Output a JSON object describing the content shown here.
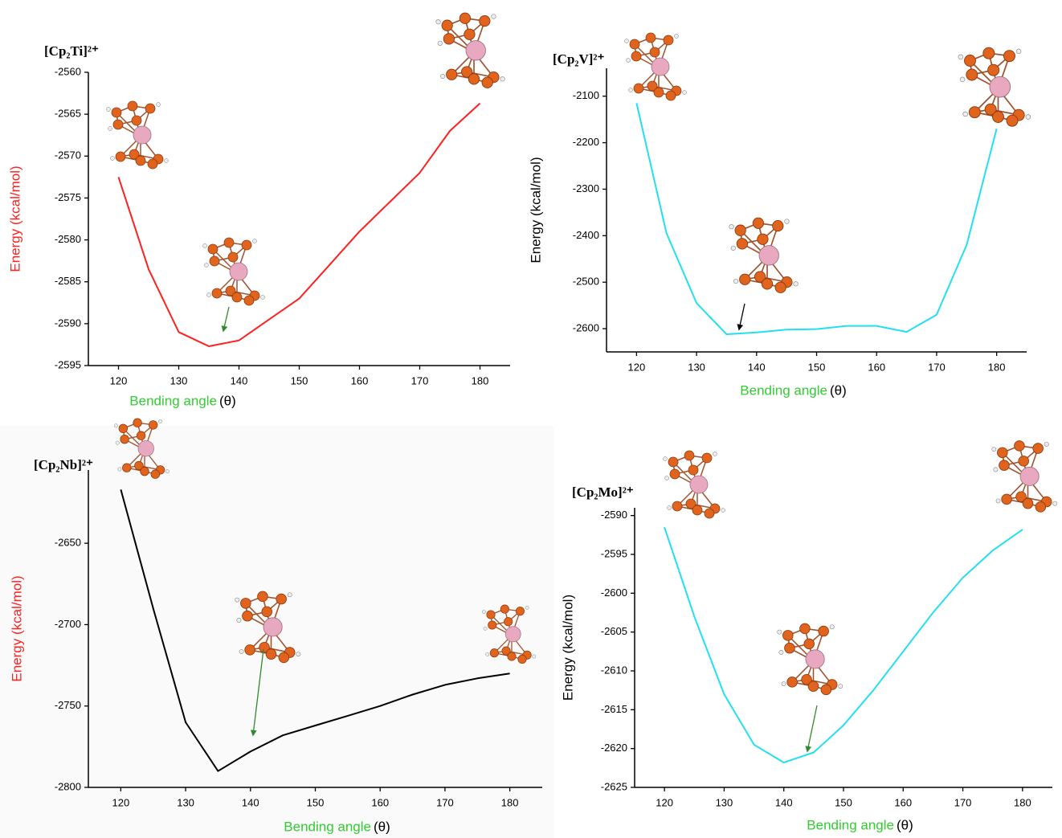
{
  "chart_data": [
    {
      "type": "line",
      "title": "[Cp₂Ti]²⁺",
      "x_label": "Bending angle",
      "x_label_unit": "(θ)",
      "x_label_color": "#33cc33",
      "y_label": "Energy (kcal/mol)",
      "y_label_color": "#ff2020",
      "x": [
        120,
        125,
        130,
        135,
        140,
        145,
        150,
        155,
        160,
        165,
        170,
        175,
        180
      ],
      "values": [
        -2572.5,
        -2583.5,
        -2591,
        -2592.7,
        -2592,
        -2589.5,
        -2587,
        -2583,
        -2579,
        -2575.5,
        -2572,
        -2567,
        -2563.7
      ],
      "color": "#ff2020",
      "xlim": [
        115,
        185
      ],
      "xticks": [
        120,
        130,
        140,
        150,
        160,
        170,
        180
      ],
      "ylim": [
        -2595,
        -2560
      ],
      "yticks": [
        -2595,
        -2590,
        -2585,
        -2580,
        -2575,
        -2570,
        -2565,
        -2560
      ]
    },
    {
      "type": "line",
      "title": "[Cp₂V]²⁺",
      "x_label": "Bending angle",
      "x_label_unit": "(θ)",
      "x_label_color": "#33cc33",
      "y_label": "Energy (kcal/mol)",
      "y_label_color": "#000000",
      "x": [
        120,
        125,
        130,
        135,
        140,
        145,
        150,
        155,
        160,
        165,
        170,
        175,
        180
      ],
      "values": [
        -2115,
        -2395,
        -2545,
        -2612,
        -2608,
        -2602,
        -2601,
        -2594,
        -2594,
        -2607,
        -2570,
        -2420,
        -2170
      ],
      "color": "#22e0f0",
      "xlim": [
        115,
        185
      ],
      "xticks": [
        120,
        130,
        140,
        150,
        160,
        170,
        180
      ],
      "ylim": [
        -2650,
        -2040
      ],
      "yticks": [
        -2600,
        -2500,
        -2400,
        -2300,
        -2200,
        -2100
      ]
    },
    {
      "type": "line",
      "title": "[Cp₂Nb]²⁺",
      "x_label": "Bending angle",
      "x_label_unit": "(θ)",
      "x_label_color": "#33cc33",
      "y_label": "Energy (kcal/mol)",
      "y_label_color": "#ff2020",
      "x": [
        120,
        125,
        130,
        135,
        140,
        145,
        150,
        155,
        160,
        165,
        170,
        175,
        180
      ],
      "values": [
        -2617,
        -2690,
        -2760,
        -2790,
        -2778,
        -2768,
        -2762,
        -2756,
        -2750,
        -2743,
        -2737,
        -2733,
        -2730
      ],
      "color": "#000000",
      "xlim": [
        115,
        185
      ],
      "xticks": [
        120,
        130,
        140,
        150,
        160,
        170,
        180
      ],
      "ylim": [
        -2800,
        -2605
      ],
      "yticks": [
        -2800,
        -2750,
        -2700,
        -2650
      ]
    },
    {
      "type": "line",
      "title": "[Cp₂Mo]²⁺",
      "x_label": "Bending angle",
      "x_label_unit": "(θ)",
      "x_label_color": "#33cc33",
      "y_label": "Energy (kcal/mol)",
      "y_label_color": "#000000",
      "x": [
        120,
        125,
        130,
        135,
        140,
        145,
        150,
        155,
        160,
        165,
        170,
        175,
        180
      ],
      "values": [
        -2591.5,
        -2603,
        -2613,
        -2619.5,
        -2621.8,
        -2620.5,
        -2617,
        -2612.5,
        -2607.5,
        -2602.5,
        -2598,
        -2594.5,
        -2591.8
      ],
      "color": "#22e0f0",
      "xlim": [
        115,
        185
      ],
      "xticks": [
        120,
        130,
        140,
        150,
        160,
        170,
        180
      ],
      "ylim": [
        -2625,
        -2589
      ],
      "yticks": [
        -2625,
        -2620,
        -2615,
        -2610,
        -2605,
        -2600,
        -2595,
        -2590
      ]
    }
  ]
}
